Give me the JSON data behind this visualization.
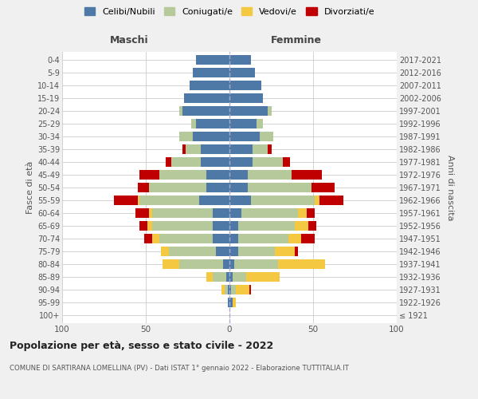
{
  "age_groups": [
    "100+",
    "95-99",
    "90-94",
    "85-89",
    "80-84",
    "75-79",
    "70-74",
    "65-69",
    "60-64",
    "55-59",
    "50-54",
    "45-49",
    "40-44",
    "35-39",
    "30-34",
    "25-29",
    "20-24",
    "15-19",
    "10-14",
    "5-9",
    "0-4"
  ],
  "birth_years": [
    "≤ 1921",
    "1922-1926",
    "1927-1931",
    "1932-1936",
    "1937-1941",
    "1942-1946",
    "1947-1951",
    "1952-1956",
    "1957-1961",
    "1962-1966",
    "1967-1971",
    "1972-1976",
    "1977-1981",
    "1982-1986",
    "1987-1991",
    "1992-1996",
    "1997-2001",
    "2002-2006",
    "2007-2011",
    "2012-2016",
    "2017-2021"
  ],
  "colors": {
    "celibe": "#4e79a7",
    "coniugato": "#b5c99a",
    "vedovo": "#f5c842",
    "divorziato": "#c00000"
  },
  "maschi": {
    "celibe": [
      0,
      1,
      1,
      2,
      4,
      8,
      10,
      10,
      10,
      18,
      14,
      14,
      17,
      17,
      22,
      20,
      28,
      27,
      24,
      22,
      20
    ],
    "coniugato": [
      0,
      0,
      2,
      8,
      26,
      28,
      32,
      36,
      36,
      36,
      34,
      28,
      18,
      9,
      8,
      3,
      2,
      0,
      0,
      0,
      0
    ],
    "vedovo": [
      0,
      0,
      2,
      4,
      10,
      5,
      4,
      3,
      2,
      1,
      0,
      0,
      0,
      0,
      0,
      0,
      0,
      0,
      0,
      0,
      0
    ],
    "divorziato": [
      0,
      0,
      0,
      0,
      0,
      0,
      5,
      5,
      8,
      14,
      7,
      12,
      3,
      2,
      0,
      0,
      0,
      0,
      0,
      0,
      0
    ]
  },
  "femmine": {
    "nubile": [
      0,
      2,
      1,
      2,
      3,
      5,
      5,
      5,
      7,
      13,
      11,
      11,
      14,
      14,
      18,
      16,
      23,
      20,
      19,
      15,
      13
    ],
    "coniugata": [
      0,
      0,
      3,
      8,
      26,
      22,
      30,
      34,
      34,
      38,
      38,
      26,
      18,
      9,
      8,
      4,
      2,
      0,
      0,
      0,
      0
    ],
    "vedova": [
      0,
      2,
      8,
      20,
      28,
      12,
      8,
      8,
      5,
      3,
      0,
      0,
      0,
      0,
      0,
      0,
      0,
      0,
      0,
      0,
      0
    ],
    "divorziata": [
      0,
      0,
      1,
      0,
      0,
      2,
      8,
      5,
      5,
      14,
      14,
      18,
      4,
      2,
      0,
      0,
      0,
      0,
      0,
      0,
      0
    ]
  },
  "xlim": 100,
  "title": "Popolazione per età, sesso e stato civile - 2022",
  "subtitle": "COMUNE DI SARTIRANA LOMELLINA (PV) - Dati ISTAT 1° gennaio 2022 - Elaborazione TUTTITALIA.IT",
  "xlabel_left": "Maschi",
  "xlabel_right": "Femmine",
  "ylabel_left": "Fasce di età",
  "ylabel_right": "Anni di nascita",
  "legend_labels": [
    "Celibi/Nubili",
    "Coniugati/e",
    "Vedovi/e",
    "Divorziati/e"
  ],
  "bg_color": "#f0f0f0",
  "plot_bg": "#ffffff"
}
